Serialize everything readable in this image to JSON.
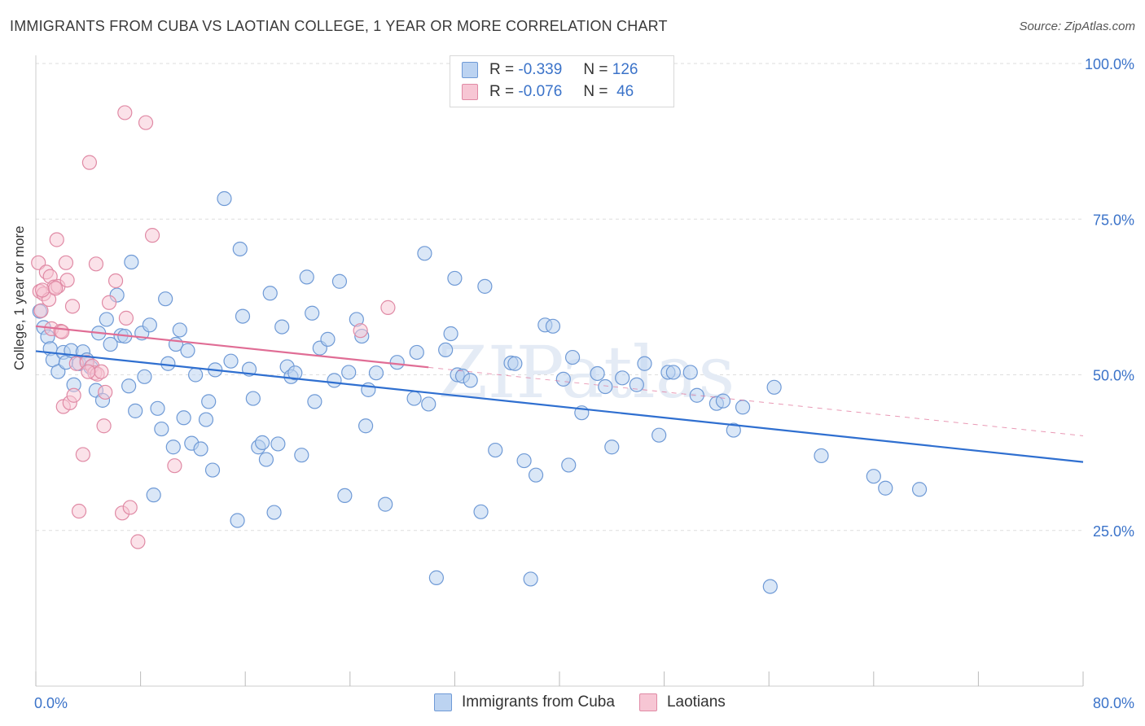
{
  "title": "IMMIGRANTS FROM CUBA VS LAOTIAN COLLEGE, 1 YEAR OR MORE CORRELATION CHART",
  "source": "Source: ZipAtlas.com",
  "watermark": "ZIPatlas",
  "colors": {
    "blue_fill": "#bcd3f1",
    "blue_stroke": "#6f9ad6",
    "blue_line": "#2f6fd0",
    "pink_fill": "#f7c6d4",
    "pink_stroke": "#e08aa5",
    "pink_line": "#e06d95",
    "axis_text": "#3b73c9",
    "grid": "#dddddd"
  },
  "stats": [
    {
      "r_label": "R =",
      "r_value": "-0.339",
      "n_label": "N =",
      "n_value": "126"
    },
    {
      "r_label": "R =",
      "r_value": "-0.076",
      "n_label": "N =",
      "n_value": "46"
    }
  ],
  "legend": [
    {
      "label": "Immigrants from Cuba"
    },
    {
      "label": "Laotians"
    }
  ],
  "chart_data": {
    "type": "scatter",
    "xlabel": "",
    "ylabel": "College, 1 year or more",
    "xlim": [
      0,
      80
    ],
    "ylim": [
      0,
      100
    ],
    "x_tick_labels": [
      "0.0%",
      "80.0%"
    ],
    "y_tick_values": [
      25,
      50,
      75,
      100
    ],
    "y_tick_labels": [
      "25.0%",
      "50.0%",
      "75.0%",
      "100.0%"
    ],
    "grid": true,
    "legend_position": "bottom-center",
    "series": [
      {
        "name": "Immigrants from Cuba",
        "trend": {
          "x": [
            0,
            80
          ],
          "y": [
            53.8,
            36.0
          ]
        },
        "points": [
          [
            0.3,
            60.2
          ],
          [
            0.6,
            57.6
          ],
          [
            0.9,
            56.1
          ],
          [
            1.1,
            54.2
          ],
          [
            1.3,
            52.4
          ],
          [
            1.7,
            50.5
          ],
          [
            2.1,
            53.6
          ],
          [
            2.3,
            52.0
          ],
          [
            2.7,
            53.9
          ],
          [
            2.9,
            48.4
          ],
          [
            3.3,
            51.8
          ],
          [
            3.6,
            53.7
          ],
          [
            3.9,
            52.4
          ],
          [
            4.2,
            51.2
          ],
          [
            4.6,
            47.5
          ],
          [
            4.8,
            56.7
          ],
          [
            5.1,
            45.9
          ],
          [
            5.4,
            58.9
          ],
          [
            5.7,
            54.9
          ],
          [
            6.2,
            62.8
          ],
          [
            6.5,
            56.3
          ],
          [
            6.8,
            56.2
          ],
          [
            7.1,
            48.2
          ],
          [
            7.3,
            68.1
          ],
          [
            7.6,
            44.2
          ],
          [
            8.1,
            56.7
          ],
          [
            8.3,
            49.7
          ],
          [
            8.7,
            58.0
          ],
          [
            9.0,
            30.7
          ],
          [
            9.3,
            44.6
          ],
          [
            9.6,
            41.3
          ],
          [
            9.9,
            62.2
          ],
          [
            10.1,
            51.8
          ],
          [
            10.5,
            38.4
          ],
          [
            10.7,
            54.9
          ],
          [
            11.0,
            57.2
          ],
          [
            11.3,
            43.1
          ],
          [
            11.6,
            53.9
          ],
          [
            11.9,
            39.0
          ],
          [
            12.2,
            50.0
          ],
          [
            12.6,
            38.1
          ],
          [
            13.0,
            42.8
          ],
          [
            13.2,
            45.7
          ],
          [
            13.5,
            34.7
          ],
          [
            13.7,
            50.8
          ],
          [
            14.4,
            78.3
          ],
          [
            14.9,
            52.2
          ],
          [
            15.4,
            26.6
          ],
          [
            15.6,
            70.2
          ],
          [
            15.8,
            59.4
          ],
          [
            16.3,
            50.9
          ],
          [
            16.6,
            46.2
          ],
          [
            17.0,
            38.4
          ],
          [
            17.3,
            39.1
          ],
          [
            17.6,
            36.4
          ],
          [
            17.9,
            63.1
          ],
          [
            18.2,
            27.9
          ],
          [
            18.5,
            38.9
          ],
          [
            18.8,
            57.7
          ],
          [
            19.2,
            51.3
          ],
          [
            19.5,
            49.7
          ],
          [
            19.8,
            50.3
          ],
          [
            20.3,
            37.1
          ],
          [
            20.7,
            65.7
          ],
          [
            21.1,
            59.9
          ],
          [
            21.3,
            45.7
          ],
          [
            21.7,
            54.3
          ],
          [
            22.3,
            55.7
          ],
          [
            22.8,
            49.1
          ],
          [
            23.2,
            65.0
          ],
          [
            23.6,
            30.6
          ],
          [
            23.9,
            50.4
          ],
          [
            24.5,
            58.9
          ],
          [
            24.9,
            56.2
          ],
          [
            25.2,
            41.8
          ],
          [
            25.4,
            47.6
          ],
          [
            26.0,
            50.3
          ],
          [
            26.7,
            29.2
          ],
          [
            27.6,
            52.0
          ],
          [
            28.9,
            46.2
          ],
          [
            29.1,
            53.6
          ],
          [
            29.7,
            69.5
          ],
          [
            30.0,
            45.3
          ],
          [
            30.6,
            17.4
          ],
          [
            31.3,
            54.0
          ],
          [
            31.7,
            56.6
          ],
          [
            32.0,
            65.5
          ],
          [
            32.2,
            50.0
          ],
          [
            32.6,
            49.8
          ],
          [
            33.2,
            49.1
          ],
          [
            34.0,
            28.0
          ],
          [
            34.3,
            64.2
          ],
          [
            35.1,
            37.9
          ],
          [
            36.3,
            51.9
          ],
          [
            36.6,
            51.8
          ],
          [
            37.3,
            36.2
          ],
          [
            37.8,
            17.2
          ],
          [
            38.2,
            33.9
          ],
          [
            38.9,
            58.0
          ],
          [
            39.5,
            57.8
          ],
          [
            40.3,
            49.3
          ],
          [
            40.7,
            35.5
          ],
          [
            41.0,
            52.8
          ],
          [
            41.7,
            43.9
          ],
          [
            42.9,
            50.2
          ],
          [
            43.5,
            48.1
          ],
          [
            44.0,
            38.4
          ],
          [
            44.8,
            49.5
          ],
          [
            45.9,
            48.4
          ],
          [
            46.5,
            51.8
          ],
          [
            47.6,
            40.3
          ],
          [
            48.3,
            50.4
          ],
          [
            48.7,
            50.4
          ],
          [
            50.0,
            50.4
          ],
          [
            50.5,
            46.7
          ],
          [
            52.0,
            45.4
          ],
          [
            52.5,
            45.8
          ],
          [
            53.3,
            41.1
          ],
          [
            54.0,
            44.8
          ],
          [
            56.1,
            16.0
          ],
          [
            56.4,
            48.0
          ],
          [
            60.0,
            37.0
          ],
          [
            64.0,
            33.7
          ],
          [
            64.9,
            31.8
          ],
          [
            67.5,
            31.6
          ]
        ]
      },
      {
        "name": "Laotians",
        "trend_solid": {
          "x": [
            0,
            30.0
          ],
          "y": [
            57.8,
            51.2
          ]
        },
        "trend_dashed": {
          "x": [
            30.0,
            80
          ],
          "y": [
            51.2,
            40.2
          ]
        },
        "points": [
          [
            0.2,
            68.0
          ],
          [
            0.3,
            63.4
          ],
          [
            0.4,
            60.3
          ],
          [
            0.6,
            63.0
          ],
          [
            0.8,
            66.5
          ],
          [
            1.0,
            62.1
          ],
          [
            1.1,
            65.8
          ],
          [
            1.2,
            57.4
          ],
          [
            1.4,
            64.1
          ],
          [
            1.6,
            71.7
          ],
          [
            1.7,
            64.2
          ],
          [
            1.9,
            57.0
          ],
          [
            2.1,
            44.9
          ],
          [
            2.3,
            68.0
          ],
          [
            2.4,
            65.2
          ],
          [
            2.6,
            45.5
          ],
          [
            2.8,
            61.0
          ],
          [
            2.9,
            46.7
          ],
          [
            3.1,
            51.8
          ],
          [
            3.3,
            28.1
          ],
          [
            3.6,
            37.2
          ],
          [
            3.9,
            52.0
          ],
          [
            4.1,
            84.1
          ],
          [
            4.3,
            51.4
          ],
          [
            4.5,
            50.3
          ],
          [
            4.6,
            67.8
          ],
          [
            4.7,
            50.1
          ],
          [
            5.0,
            50.5
          ],
          [
            5.2,
            41.8
          ],
          [
            5.3,
            47.2
          ],
          [
            5.6,
            61.6
          ],
          [
            6.1,
            65.1
          ],
          [
            6.6,
            27.8
          ],
          [
            6.8,
            92.1
          ],
          [
            6.9,
            59.1
          ],
          [
            7.2,
            28.7
          ],
          [
            7.8,
            23.2
          ],
          [
            8.4,
            90.5
          ],
          [
            8.9,
            72.4
          ],
          [
            10.6,
            35.4
          ],
          [
            24.8,
            57.1
          ],
          [
            26.9,
            60.8
          ],
          [
            0.5,
            63.6
          ],
          [
            1.5,
            63.9
          ],
          [
            2.0,
            56.9
          ],
          [
            4.0,
            50.5
          ]
        ]
      }
    ]
  }
}
